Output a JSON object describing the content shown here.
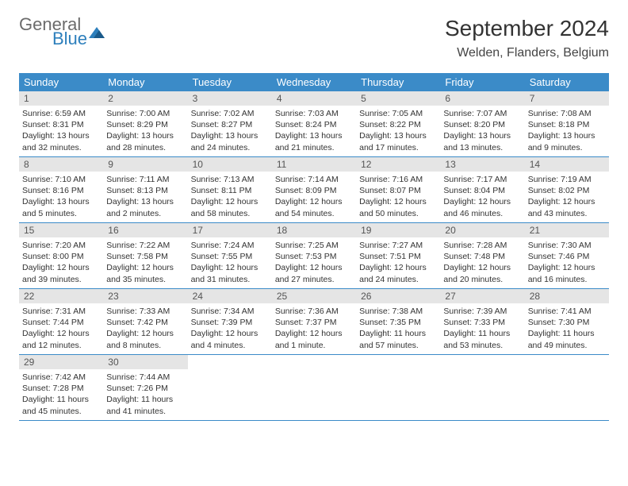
{
  "logo": {
    "general": "General",
    "blue": "Blue"
  },
  "title": "September 2024",
  "location": "Welden, Flanders, Belgium",
  "colors": {
    "header_bg": "#3b8bc8",
    "header_text": "#ffffff",
    "daynum_bg": "#e5e5e5",
    "daynum_text": "#555555",
    "border": "#3b8bc8",
    "logo_gray": "#6b6b6b",
    "logo_blue": "#2d7fbc"
  },
  "day_headers": [
    "Sunday",
    "Monday",
    "Tuesday",
    "Wednesday",
    "Thursday",
    "Friday",
    "Saturday"
  ],
  "weeks": [
    [
      {
        "n": "1",
        "sr": "6:59 AM",
        "ss": "8:31 PM",
        "dl": "13 hours and 32 minutes."
      },
      {
        "n": "2",
        "sr": "7:00 AM",
        "ss": "8:29 PM",
        "dl": "13 hours and 28 minutes."
      },
      {
        "n": "3",
        "sr": "7:02 AM",
        "ss": "8:27 PM",
        "dl": "13 hours and 24 minutes."
      },
      {
        "n": "4",
        "sr": "7:03 AM",
        "ss": "8:24 PM",
        "dl": "13 hours and 21 minutes."
      },
      {
        "n": "5",
        "sr": "7:05 AM",
        "ss": "8:22 PM",
        "dl": "13 hours and 17 minutes."
      },
      {
        "n": "6",
        "sr": "7:07 AM",
        "ss": "8:20 PM",
        "dl": "13 hours and 13 minutes."
      },
      {
        "n": "7",
        "sr": "7:08 AM",
        "ss": "8:18 PM",
        "dl": "13 hours and 9 minutes."
      }
    ],
    [
      {
        "n": "8",
        "sr": "7:10 AM",
        "ss": "8:16 PM",
        "dl": "13 hours and 5 minutes."
      },
      {
        "n": "9",
        "sr": "7:11 AM",
        "ss": "8:13 PM",
        "dl": "13 hours and 2 minutes."
      },
      {
        "n": "10",
        "sr": "7:13 AM",
        "ss": "8:11 PM",
        "dl": "12 hours and 58 minutes."
      },
      {
        "n": "11",
        "sr": "7:14 AM",
        "ss": "8:09 PM",
        "dl": "12 hours and 54 minutes."
      },
      {
        "n": "12",
        "sr": "7:16 AM",
        "ss": "8:07 PM",
        "dl": "12 hours and 50 minutes."
      },
      {
        "n": "13",
        "sr": "7:17 AM",
        "ss": "8:04 PM",
        "dl": "12 hours and 46 minutes."
      },
      {
        "n": "14",
        "sr": "7:19 AM",
        "ss": "8:02 PM",
        "dl": "12 hours and 43 minutes."
      }
    ],
    [
      {
        "n": "15",
        "sr": "7:20 AM",
        "ss": "8:00 PM",
        "dl": "12 hours and 39 minutes."
      },
      {
        "n": "16",
        "sr": "7:22 AM",
        "ss": "7:58 PM",
        "dl": "12 hours and 35 minutes."
      },
      {
        "n": "17",
        "sr": "7:24 AM",
        "ss": "7:55 PM",
        "dl": "12 hours and 31 minutes."
      },
      {
        "n": "18",
        "sr": "7:25 AM",
        "ss": "7:53 PM",
        "dl": "12 hours and 27 minutes."
      },
      {
        "n": "19",
        "sr": "7:27 AM",
        "ss": "7:51 PM",
        "dl": "12 hours and 24 minutes."
      },
      {
        "n": "20",
        "sr": "7:28 AM",
        "ss": "7:48 PM",
        "dl": "12 hours and 20 minutes."
      },
      {
        "n": "21",
        "sr": "7:30 AM",
        "ss": "7:46 PM",
        "dl": "12 hours and 16 minutes."
      }
    ],
    [
      {
        "n": "22",
        "sr": "7:31 AM",
        "ss": "7:44 PM",
        "dl": "12 hours and 12 minutes."
      },
      {
        "n": "23",
        "sr": "7:33 AM",
        "ss": "7:42 PM",
        "dl": "12 hours and 8 minutes."
      },
      {
        "n": "24",
        "sr": "7:34 AM",
        "ss": "7:39 PM",
        "dl": "12 hours and 4 minutes."
      },
      {
        "n": "25",
        "sr": "7:36 AM",
        "ss": "7:37 PM",
        "dl": "12 hours and 1 minute."
      },
      {
        "n": "26",
        "sr": "7:38 AM",
        "ss": "7:35 PM",
        "dl": "11 hours and 57 minutes."
      },
      {
        "n": "27",
        "sr": "7:39 AM",
        "ss": "7:33 PM",
        "dl": "11 hours and 53 minutes."
      },
      {
        "n": "28",
        "sr": "7:41 AM",
        "ss": "7:30 PM",
        "dl": "11 hours and 49 minutes."
      }
    ],
    [
      {
        "n": "29",
        "sr": "7:42 AM",
        "ss": "7:28 PM",
        "dl": "11 hours and 45 minutes."
      },
      {
        "n": "30",
        "sr": "7:44 AM",
        "ss": "7:26 PM",
        "dl": "11 hours and 41 minutes."
      },
      null,
      null,
      null,
      null,
      null
    ]
  ],
  "labels": {
    "sunrise": "Sunrise: ",
    "sunset": "Sunset: ",
    "daylight": "Daylight: "
  }
}
